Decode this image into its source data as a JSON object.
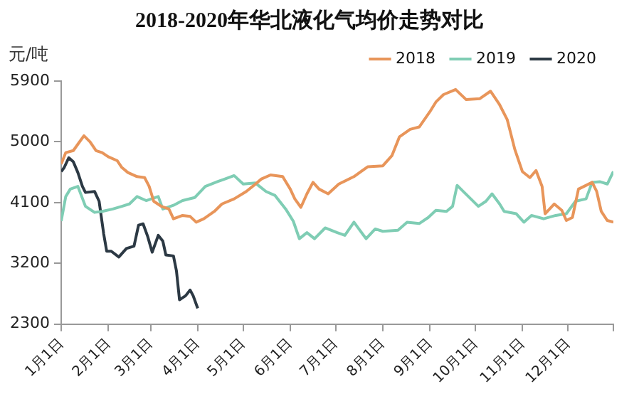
{
  "chart_data": {
    "type": "line",
    "title": "2018-2020年华北液化气均价走势对比",
    "ylabel": "元/吨",
    "xlim": [
      "--01-01",
      "--12-31"
    ],
    "xticks": [
      {
        "value": "--01-01",
        "label": "1月1日"
      },
      {
        "value": "--02-01",
        "label": "2月1日"
      },
      {
        "value": "--03-01",
        "label": "3月1日"
      },
      {
        "value": "--04-01",
        "label": "4月1日"
      },
      {
        "value": "--05-01",
        "label": "5月1日"
      },
      {
        "value": "--06-01",
        "label": "6月1日"
      },
      {
        "value": "--07-01",
        "label": "7月1日"
      },
      {
        "value": "--08-01",
        "label": "8月1日"
      },
      {
        "value": "--09-01",
        "label": "9月1日"
      },
      {
        "value": "--10-01",
        "label": "10月1日"
      },
      {
        "value": "--11-01",
        "label": "11月1日"
      },
      {
        "value": "--12-01",
        "label": "12月1日"
      },
      {
        "value": "--12-31",
        "label": null
      }
    ],
    "ylim": [
      2300,
      5900
    ],
    "yticks": [
      2300,
      3200,
      4100,
      5000,
      5900
    ],
    "grid": false,
    "legend": "top right",
    "marker": "none",
    "line_style": "solid",
    "series": [
      {
        "name": "2018",
        "color": "#e8955a",
        "x": [
          "--01-01",
          "--01-04",
          "--01-09",
          "--01-12",
          "--01-16",
          "--01-20",
          "--01-24",
          "--01-28",
          "--02-01",
          "--02-07",
          "--02-10",
          "--02-14",
          "--02-20",
          "--02-25",
          "--02-28",
          "--03-03",
          "--03-08",
          "--03-13",
          "--03-16",
          "--03-22",
          "--03-27",
          "--03-31",
          "--04-05",
          "--04-12",
          "--04-17",
          "--04-25",
          "--05-03",
          "--05-08",
          "--05-13",
          "--05-19",
          "--05-27",
          "--06-01",
          "--06-04",
          "--06-08",
          "--06-12",
          "--06-16",
          "--06-20",
          "--06-26",
          "--07-03",
          "--07-13",
          "--07-22",
          "--08-01",
          "--08-07",
          "--08-12",
          "--08-19",
          "--08-25",
          "--09-01",
          "--09-05",
          "--09-10",
          "--09-18",
          "--09-25",
          "--10-04",
          "--10-11",
          "--10-17",
          "--10-22",
          "--10-27",
          "--11-01",
          "--11-06",
          "--11-10",
          "--11-14",
          "--11-16",
          "--11-22",
          "--11-27",
          "--11-30",
          "--12-04",
          "--12-08",
          "--12-13",
          "--12-17",
          "--12-20",
          "--12-23",
          "--12-27",
          "--12-31"
        ],
        "values": [
          4670,
          4840,
          4870,
          4965,
          5090,
          5000,
          4870,
          4840,
          4780,
          4720,
          4620,
          4545,
          4485,
          4470,
          4340,
          4120,
          4045,
          4005,
          3860,
          3910,
          3895,
          3810,
          3860,
          3970,
          4080,
          4155,
          4265,
          4355,
          4450,
          4510,
          4485,
          4300,
          4155,
          4030,
          4230,
          4400,
          4300,
          4230,
          4375,
          4485,
          4630,
          4645,
          4795,
          5075,
          5185,
          5220,
          5445,
          5590,
          5700,
          5775,
          5625,
          5640,
          5750,
          5550,
          5330,
          4890,
          4560,
          4470,
          4575,
          4340,
          3935,
          4080,
          3985,
          3835,
          3880,
          4300,
          4355,
          4400,
          4265,
          3970,
          3835,
          3810
        ]
      },
      {
        "name": "2019",
        "color": "#7fcdb4",
        "x": [
          "--01-01",
          "--01-04",
          "--01-07",
          "--01-12",
          "--01-17",
          "--01-23",
          "--01-28",
          "--02-04",
          "--02-10",
          "--02-15",
          "--02-20",
          "--02-26",
          "--03-06",
          "--03-09",
          "--03-16",
          "--03-22",
          "--03-30",
          "--04-06",
          "--04-14",
          "--04-19",
          "--04-25",
          "--05-01",
          "--05-09",
          "--05-16",
          "--05-22",
          "--05-29",
          "--06-03",
          "--06-07",
          "--06-12",
          "--06-17",
          "--06-24",
          "--07-02",
          "--07-07",
          "--07-13",
          "--07-21",
          "--07-27",
          "--08-01",
          "--08-11",
          "--08-17",
          "--08-25",
          "--08-31",
          "--09-05",
          "--09-12",
          "--09-16",
          "--09-19",
          "--09-23",
          "--09-28",
          "--10-03",
          "--10-08",
          "--10-12",
          "--10-17",
          "--10-20",
          "--10-28",
          "--11-02",
          "--11-07",
          "--11-15",
          "--11-23",
          "--11-30",
          "--12-06",
          "--12-13",
          "--12-17",
          "--12-22",
          "--12-27",
          "--12-31"
        ],
        "values": [
          3825,
          4190,
          4300,
          4340,
          4045,
          3955,
          3970,
          4005,
          4045,
          4080,
          4190,
          4130,
          4190,
          4005,
          4060,
          4130,
          4175,
          4340,
          4410,
          4450,
          4500,
          4375,
          4390,
          4265,
          4205,
          4005,
          3825,
          3565,
          3655,
          3565,
          3725,
          3655,
          3615,
          3810,
          3565,
          3710,
          3675,
          3690,
          3810,
          3790,
          3880,
          3985,
          3970,
          4045,
          4355,
          4265,
          4155,
          4045,
          4120,
          4230,
          4080,
          3970,
          3935,
          3810,
          3910,
          3860,
          3910,
          3935,
          4120,
          4155,
          4400,
          4410,
          4375,
          4560
        ]
      },
      {
        "name": "2020",
        "color": "#2c3944",
        "x": [
          "--01-01",
          "--01-03",
          "--01-06",
          "--01-09",
          "--01-12",
          "--01-15",
          "--01-17",
          "--01-23",
          "--01-26",
          "--01-29",
          "--01-31",
          "--02-03",
          "--02-08",
          "--02-13",
          "--02-18",
          "--02-21",
          "--02-24",
          "--02-27",
          "--03-02",
          "--03-06",
          "--03-09",
          "--03-11",
          "--03-16",
          "--03-18",
          "--03-20",
          "--03-24",
          "--03-27",
          "--03-29",
          "--04-01"
        ],
        "values": [
          4560,
          4620,
          4765,
          4705,
          4545,
          4340,
          4250,
          4265,
          4120,
          3640,
          3380,
          3380,
          3295,
          3420,
          3455,
          3765,
          3785,
          3600,
          3365,
          3615,
          3530,
          3325,
          3310,
          3085,
          2660,
          2720,
          2805,
          2720,
          2535
        ]
      }
    ]
  }
}
